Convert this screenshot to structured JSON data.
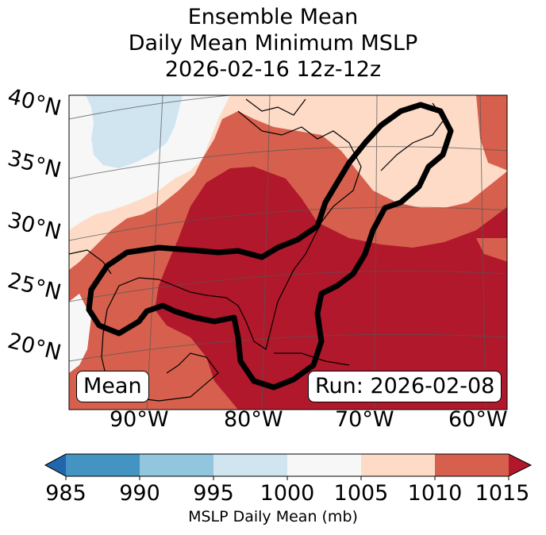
{
  "title": {
    "line1": "Ensemble Mean",
    "line2": "Daily Mean Minimum MSLP",
    "line3": "2026-02-16 12z-12z"
  },
  "map": {
    "lat_labels": [
      "40°N",
      "35°N",
      "30°N",
      "25°N",
      "20°N"
    ],
    "lon_labels": [
      "90°W",
      "80°W",
      "70°W",
      "60°W"
    ],
    "mean_box": "Mean",
    "run_box": "Run: 2026-02-08",
    "colors": {
      "c1000_1005": "#f7f7f7",
      "c995_1000": "#d1e5f0",
      "c1005_1010": "#fddbc7",
      "c1010_1015": "#d6604d",
      "c1015_plus": "#b2182b",
      "land_border": "#000000",
      "contour": "#000000"
    }
  },
  "colorbar": {
    "ticks": [
      "985",
      "990",
      "995",
      "1000",
      "1005",
      "1010",
      "1015"
    ],
    "colors": [
      "#2166ac",
      "#4393c3",
      "#92c5de",
      "#d1e5f0",
      "#f7f7f7",
      "#fddbc7",
      "#d6604d",
      "#b2182b"
    ],
    "label": "MSLP Daily Mean (mb)"
  }
}
